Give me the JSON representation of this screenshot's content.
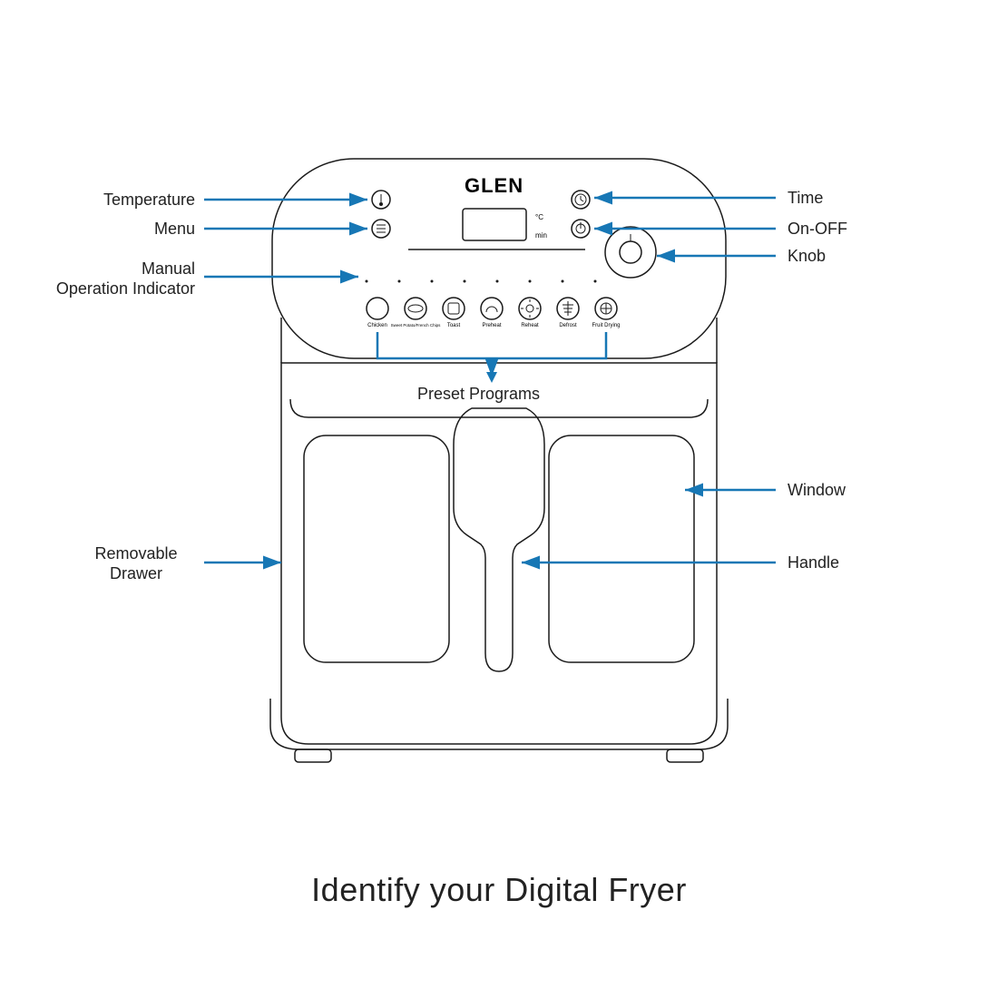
{
  "title": "Identify your Digital Fryer",
  "brand": "GLEN",
  "labels": {
    "temperature": "Temperature",
    "menu": "Menu",
    "manual": "Manual\nOperation Indicator",
    "preset": "Preset Programs",
    "time": "Time",
    "onoff": "On-OFF",
    "knob": "Knob",
    "window": "Window",
    "handle": "Handle",
    "drawer": "Removable\nDrawer"
  },
  "display": {
    "unitC": "°C",
    "unitMin": "min"
  },
  "presets": [
    {
      "name": "Chicken"
    },
    {
      "name": "Sweet Potato/French Chips"
    },
    {
      "name": "Toast"
    },
    {
      "name": "Preheat"
    },
    {
      "name": "Reheat"
    },
    {
      "name": "Defrost"
    },
    {
      "name": "Fruit Drying"
    }
  ],
  "colors": {
    "arrow": "#1777b5",
    "line": "#1a1a1a",
    "bg": "#ffffff"
  },
  "geometry": {
    "stroke": 1.5,
    "arrowHead": 8,
    "arrowStroke": 2.5
  }
}
